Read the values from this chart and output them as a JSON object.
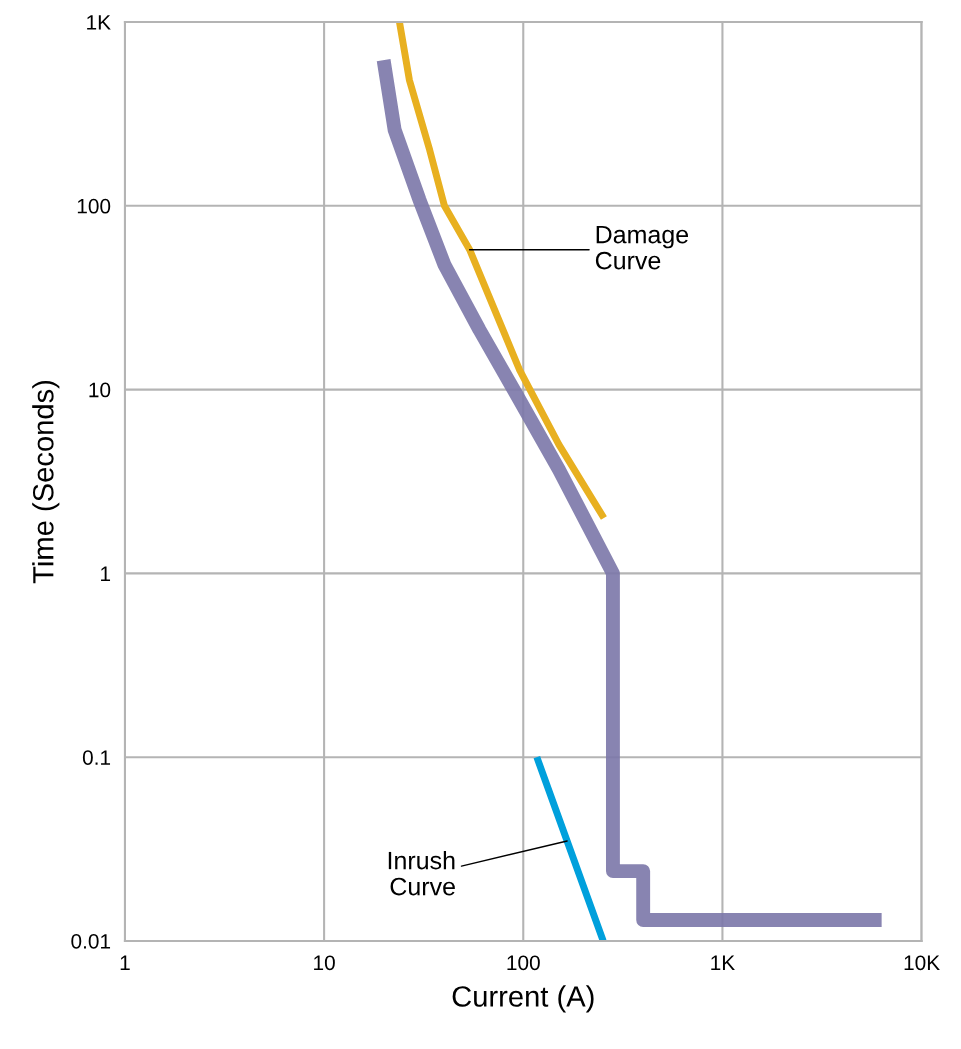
{
  "chart_data": {
    "type": "line",
    "xlabel": "Current (A)",
    "ylabel": "Time (Seconds)",
    "log": "xy",
    "grid": true,
    "marker": "none",
    "line_style": "solid",
    "xlim": [
      1,
      10000
    ],
    "ylim": [
      0.01,
      1000
    ],
    "xticks": [
      1,
      10,
      100,
      {
        "value": 1000,
        "label": "1K"
      },
      {
        "value": 10000,
        "label": "10K"
      }
    ],
    "yticks": [
      0.01,
      0.1,
      1,
      10,
      100,
      {
        "value": 1000,
        "label": "1K"
      }
    ],
    "series": [
      {
        "color": "#7b77a8",
        "x": [
          19.9,
          22.6,
          30.1,
          40.2,
          60.2,
          95.5,
          151,
          282,
          282,
          400,
          400,
          6300
        ],
        "values": [
          621,
          259,
          108,
          47.8,
          21.2,
          8.83,
          3.67,
          1,
          0.024,
          0.024,
          0.013,
          0.013
        ]
      },
      {
        "color": "#e8b020",
        "x": [
          23.9,
          26.8,
          33.9,
          40.2,
          53.8,
          95.5,
          151,
          254
        ],
        "values": [
          1000,
          484,
          201,
          100,
          57.7,
          12.9,
          5.02,
          2.0
        ]
      },
      {
        "color": "#00a0dc",
        "x": [
          117,
          166,
          252
        ],
        "values": [
          0.1,
          0.035,
          0.01
        ]
      }
    ],
    "annotations": [
      {
        "text": "Damage\nCurve",
        "x": 53.8,
        "y": 57.7
      },
      {
        "text": "Inrush\nCurve",
        "x": 166,
        "y": 0.035
      }
    ]
  }
}
